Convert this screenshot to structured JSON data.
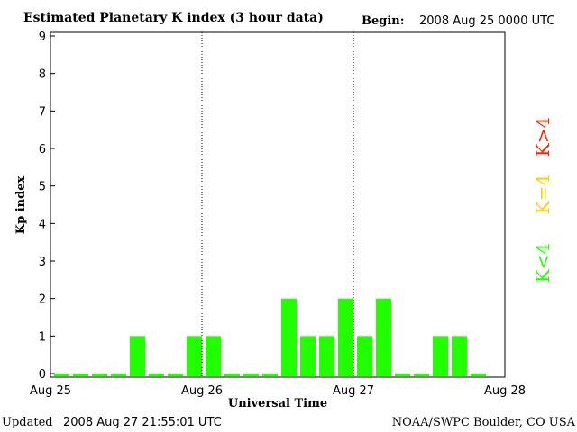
{
  "chart_data": {
    "type": "bar",
    "title": "Estimated Planetary K index (3 hour data)",
    "begin_label": "Begin:",
    "begin_value": "2008 Aug 25 0000 UTC",
    "xlabel": "Universal Time",
    "ylabel": "Kp index",
    "ylim": [
      0,
      9
    ],
    "yticks": [
      "0",
      "1",
      "2",
      "3",
      "4",
      "5",
      "6",
      "7",
      "8",
      "9"
    ],
    "xticks": [
      "Aug 25",
      "Aug 26",
      "Aug 27",
      "Aug 28"
    ],
    "day_dividers": true,
    "values": [
      0,
      0,
      0,
      0,
      1,
      0,
      0,
      1,
      1,
      0,
      0,
      0,
      2,
      1,
      1,
      2,
      1,
      2,
      0,
      0,
      1,
      1,
      0
    ],
    "bar_color": "#22ff00",
    "legend": [
      {
        "label": "K>4",
        "color": "#ff2200"
      },
      {
        "label": "K=4",
        "color": "#ffcc00"
      },
      {
        "label": "K<4",
        "color": "#22ff00"
      }
    ]
  },
  "footer": {
    "updated_label": "Updated",
    "updated_value": "2008 Aug 27 21:55:01 UTC",
    "source": "NOAA/SWPC Boulder, CO USA"
  }
}
